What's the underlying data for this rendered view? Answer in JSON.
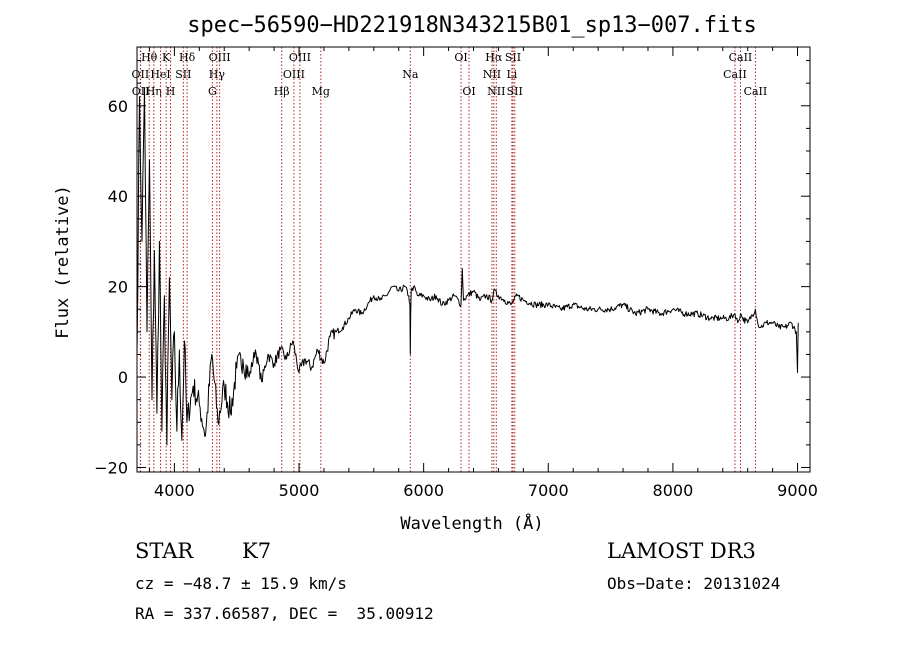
{
  "chart_data": {
    "type": "line",
    "title": "spec−56590−HD221918N343215B01_sp13−007.fits",
    "xlabel": "Wavelength (Å)",
    "ylabel": "Flux (relative)",
    "xlim": [
      3700,
      9100
    ],
    "ylim": [
      -21,
      73
    ],
    "xticks": [
      4000,
      5000,
      6000,
      7000,
      8000,
      9000
    ],
    "yticks": [
      -20,
      0,
      20,
      40,
      60
    ],
    "ytick_labels": [
      "−20",
      "0",
      "20",
      "40",
      "60"
    ],
    "line_color": "#000000",
    "marker_color": "#b22222",
    "series": [
      {
        "name": "flux",
        "x": [
          3700,
          3720,
          3740,
          3760,
          3780,
          3800,
          3820,
          3840,
          3860,
          3880,
          3900,
          3920,
          3940,
          3960,
          3980,
          4000,
          4020,
          4040,
          4060,
          4080,
          4100,
          4150,
          4200,
          4250,
          4300,
          4350,
          4400,
          4450,
          4500,
          4550,
          4600,
          4650,
          4700,
          4750,
          4800,
          4850,
          4900,
          4950,
          5000,
          5050,
          5100,
          5150,
          5200,
          5250,
          5300,
          5350,
          5400,
          5450,
          5500,
          5550,
          5600,
          5650,
          5700,
          5750,
          5800,
          5850,
          5880,
          5890,
          5893,
          5896,
          5900,
          5920,
          5950,
          6000,
          6050,
          6100,
          6150,
          6200,
          6250,
          6300,
          6310,
          6320,
          6350,
          6400,
          6450,
          6500,
          6550,
          6562,
          6600,
          6650,
          6700,
          6750,
          6800,
          6900,
          7000,
          7100,
          7200,
          7300,
          7400,
          7500,
          7600,
          7700,
          7800,
          7900,
          8000,
          8100,
          8200,
          8300,
          8400,
          8450,
          8498,
          8520,
          8542,
          8560,
          8600,
          8662,
          8680,
          8700,
          8750,
          8800,
          8850,
          8900,
          8950,
          8990,
          9000,
          9005
        ],
        "y": [
          5,
          62,
          30,
          64,
          10,
          48,
          -5,
          28,
          -8,
          30,
          -12,
          18,
          -15,
          22,
          -5,
          10,
          -12,
          6,
          -14,
          8,
          -10,
          -2,
          -6,
          -13,
          5,
          -10,
          -2,
          -8,
          2,
          4,
          0,
          6,
          -1,
          5,
          3,
          6,
          4,
          8,
          1,
          4,
          2,
          6,
          3,
          9,
          10,
          11,
          13,
          15,
          14,
          16,
          18,
          17,
          18,
          20,
          19,
          20,
          18,
          16,
          5,
          14,
          19,
          20,
          18,
          18,
          17,
          18,
          16,
          17,
          18,
          16,
          24,
          17,
          18,
          19,
          17,
          18,
          17,
          19,
          18,
          17,
          16,
          18,
          17,
          16,
          16,
          15,
          16,
          15,
          15,
          15,
          16,
          14,
          15,
          14,
          15,
          14,
          14,
          13,
          13,
          13,
          14,
          12,
          14,
          13,
          12,
          15,
          12,
          11,
          12,
          12,
          11,
          11,
          12,
          10,
          1,
          12
        ]
      }
    ],
    "line_markers": [
      {
        "name": "Hθ",
        "x": 3798,
        "row": 1
      },
      {
        "name": "OII",
        "x": 3727,
        "row": 2
      },
      {
        "name": "OII",
        "x": 3729,
        "row": 3
      },
      {
        "name": "Hη",
        "x": 3835,
        "row": 3
      },
      {
        "name": "K",
        "x": 3934,
        "row": 1
      },
      {
        "name": "HeI",
        "x": 3889,
        "row": 2
      },
      {
        "name": "H",
        "x": 3969,
        "row": 3
      },
      {
        "name": "SII",
        "x": 4072,
        "row": 2
      },
      {
        "name": "Hδ",
        "x": 4102,
        "row": 1
      },
      {
        "name": "OIII",
        "x": 4363,
        "row": 1
      },
      {
        "name": "Hγ",
        "x": 4341,
        "row": 2
      },
      {
        "name": "G",
        "x": 4305,
        "row": 3
      },
      {
        "name": "Hβ",
        "x": 4861,
        "row": 3
      },
      {
        "name": "OIII",
        "x": 5007,
        "row": 1
      },
      {
        "name": "OIII",
        "x": 4959,
        "row": 2
      },
      {
        "name": "Mg",
        "x": 5175,
        "row": 3
      },
      {
        "name": "Na",
        "x": 5893,
        "row": 2
      },
      {
        "name": "OI",
        "x": 6300,
        "row": 1
      },
      {
        "name": "OI",
        "x": 6364,
        "row": 3
      },
      {
        "name": "Hα",
        "x": 6563,
        "row": 1
      },
      {
        "name": "NII",
        "x": 6548,
        "row": 2
      },
      {
        "name": "NII",
        "x": 6583,
        "row": 3
      },
      {
        "name": "SII",
        "x": 6717,
        "row": 1
      },
      {
        "name": "Li",
        "x": 6708,
        "row": 2
      },
      {
        "name": "SII",
        "x": 6731,
        "row": 3
      },
      {
        "name": "CaII",
        "x": 8542,
        "row": 1
      },
      {
        "name": "CaII",
        "x": 8498,
        "row": 2
      },
      {
        "name": "CaII",
        "x": 8662,
        "row": 3
      }
    ]
  },
  "info": {
    "object_class": "STAR",
    "subclass": "K7",
    "survey": "LAMOST DR3",
    "redshift_line": "cz = −48.7 ± 15.9 km/s",
    "obs_date_line": "Obs−Date: 20131024",
    "coords_line": "RA = 337.66587, DEC =  35.00912"
  }
}
